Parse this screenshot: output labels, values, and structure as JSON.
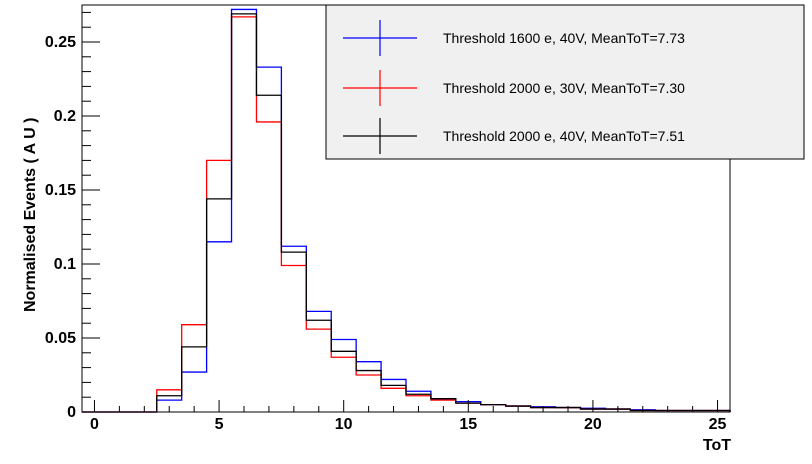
{
  "chart_data": {
    "type": "histogram",
    "title": "",
    "xlabel": "ToT",
    "ylabel": "Normalised Events ( A U )",
    "xlim": [
      -0.5,
      25.5
    ],
    "ylim": [
      0,
      0.275
    ],
    "xticks": [
      "0",
      "5",
      "10",
      "15",
      "20",
      "25"
    ],
    "xtick_values": [
      0,
      5,
      10,
      15,
      20,
      25
    ],
    "yticks": [
      "0",
      "0.05",
      "0.1",
      "0.15",
      "0.2",
      "0.25"
    ],
    "ytick_values": [
      0,
      0.05,
      0.1,
      0.15,
      0.2,
      0.25
    ],
    "bin_edges": [
      -0.5,
      0.5,
      1.5,
      2.5,
      3.5,
      4.5,
      5.5,
      6.5,
      7.5,
      8.5,
      9.5,
      10.5,
      11.5,
      12.5,
      13.5,
      14.5,
      15.5,
      16.5,
      17.5,
      18.5,
      19.5,
      20.5,
      21.5,
      22.5,
      23.5,
      24.5,
      25.5
    ],
    "legend_position": "top-right",
    "series": [
      {
        "name": "Threshold 1600 e, 40V, MeanToT=7.73",
        "color": "#0000ff",
        "values": [
          0,
          0,
          0,
          0.008,
          0.027,
          0.115,
          0.272,
          0.233,
          0.112,
          0.068,
          0.049,
          0.034,
          0.022,
          0.014,
          0.009,
          0.007,
          0.005,
          0.004,
          0.0035,
          0.003,
          0.0025,
          0.002,
          0.0015,
          0.001,
          0.001,
          0.001
        ]
      },
      {
        "name": "Threshold 2000 e, 30V, MeanToT=7.30",
        "color": "#ff0000",
        "values": [
          0,
          0,
          0,
          0.015,
          0.059,
          0.17,
          0.267,
          0.196,
          0.099,
          0.056,
          0.037,
          0.025,
          0.016,
          0.011,
          0.008,
          0.006,
          0.005,
          0.004,
          0.003,
          0.003,
          0.002,
          0.002,
          0.001,
          0.001,
          0.001,
          0.001
        ]
      },
      {
        "name": "Threshold 2000 e, 40V, MeanToT=7.51",
        "color": "#000000",
        "values": [
          0,
          0,
          0,
          0.011,
          0.044,
          0.144,
          0.269,
          0.214,
          0.108,
          0.062,
          0.041,
          0.028,
          0.018,
          0.012,
          0.009,
          0.006,
          0.005,
          0.004,
          0.003,
          0.003,
          0.002,
          0.002,
          0.001,
          0.001,
          0.001,
          0.001
        ]
      }
    ]
  }
}
